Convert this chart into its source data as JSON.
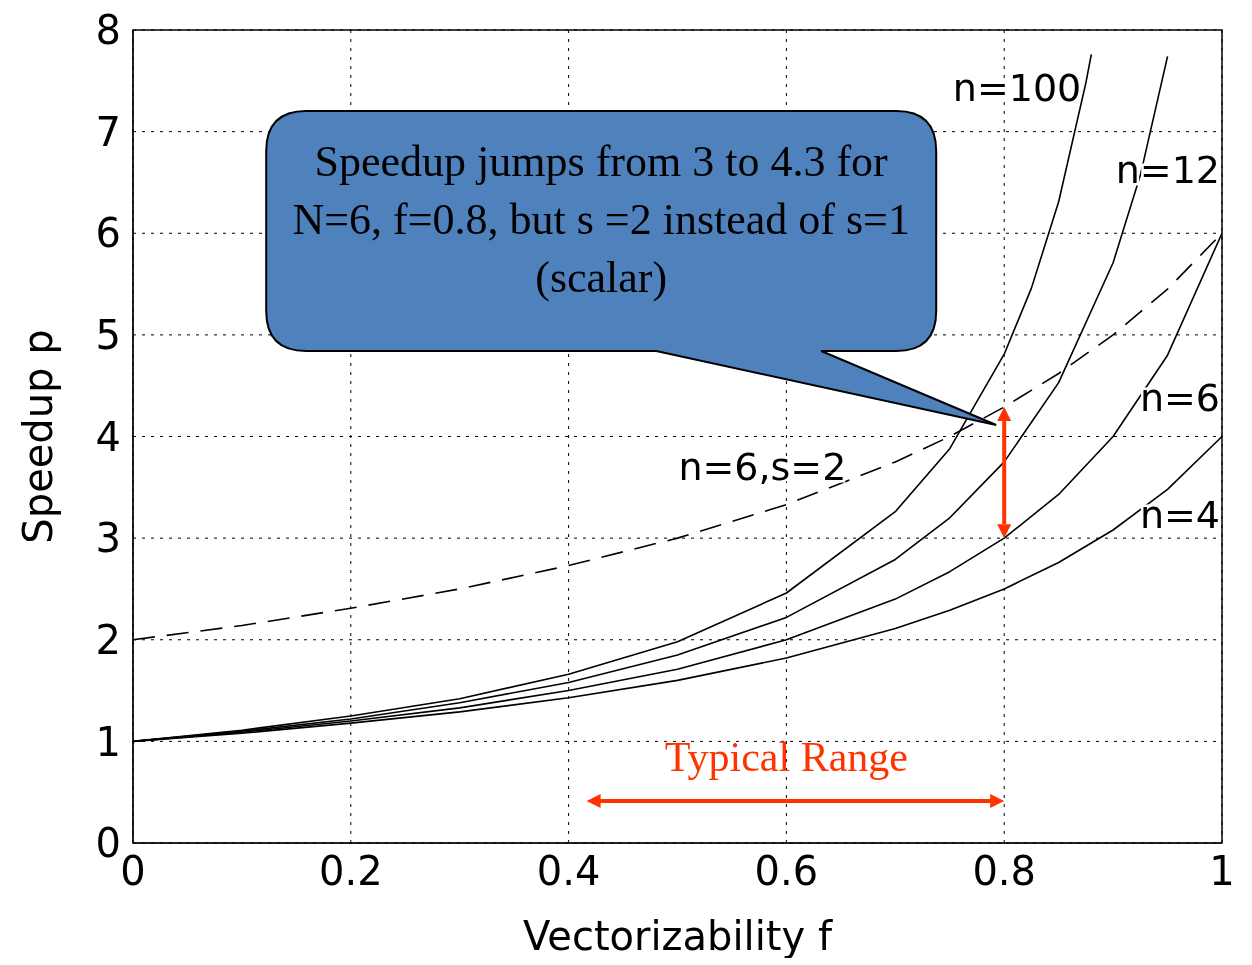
{
  "chart_data": {
    "type": "line",
    "xlabel": "Vectorizability  f",
    "ylabel": "Speedup  p",
    "xlim": [
      0,
      1
    ],
    "ylim": [
      0,
      8
    ],
    "xticks": [
      0,
      0.2,
      0.4,
      0.6,
      0.8,
      1
    ],
    "yticks": [
      0,
      1,
      2,
      3,
      4,
      5,
      6,
      7,
      8
    ],
    "grid": true,
    "legend": false,
    "marker": "none",
    "series": [
      {
        "name": "n=100",
        "color": "#000000",
        "line_style": "solid",
        "x": [
          0,
          0.1,
          0.2,
          0.3,
          0.4,
          0.5,
          0.6,
          0.7,
          0.75,
          0.8,
          0.825,
          0.85,
          0.875,
          0.88
        ],
        "values": [
          1,
          1.11,
          1.25,
          1.42,
          1.66,
          1.98,
          2.46,
          3.26,
          3.88,
          4.81,
          5.46,
          6.31,
          7.48,
          7.76
        ]
      },
      {
        "name": "n=12",
        "color": "#000000",
        "line_style": "solid",
        "x": [
          0,
          0.1,
          0.2,
          0.3,
          0.4,
          0.5,
          0.6,
          0.7,
          0.75,
          0.8,
          0.85,
          0.9,
          0.925,
          0.95
        ],
        "values": [
          1,
          1.1,
          1.22,
          1.38,
          1.58,
          1.85,
          2.22,
          2.79,
          3.2,
          3.75,
          4.53,
          5.71,
          6.57,
          7.74
        ]
      },
      {
        "name": "n=6",
        "color": "#000000",
        "line_style": "solid",
        "x": [
          0,
          0.1,
          0.2,
          0.3,
          0.4,
          0.5,
          0.6,
          0.7,
          0.75,
          0.8,
          0.85,
          0.9,
          0.95,
          1
        ],
        "values": [
          1,
          1.09,
          1.2,
          1.33,
          1.5,
          1.71,
          2,
          2.4,
          2.67,
          3,
          3.43,
          4,
          4.8,
          6
        ]
      },
      {
        "name": "n=4",
        "color": "#000000",
        "line_style": "solid",
        "x": [
          0,
          0.1,
          0.2,
          0.3,
          0.4,
          0.5,
          0.6,
          0.7,
          0.75,
          0.8,
          0.85,
          0.9,
          0.95,
          1
        ],
        "values": [
          1,
          1.08,
          1.18,
          1.29,
          1.43,
          1.6,
          1.82,
          2.11,
          2.29,
          2.5,
          2.76,
          3.08,
          3.48,
          4
        ]
      },
      {
        "name": "n=6,s=2",
        "color": "#000000",
        "line_style": "dashed",
        "x": [
          0,
          0.1,
          0.2,
          0.3,
          0.4,
          0.5,
          0.6,
          0.7,
          0.75,
          0.8,
          0.85,
          0.9,
          0.95,
          1
        ],
        "values": [
          2,
          2.14,
          2.31,
          2.5,
          2.73,
          3,
          3.33,
          3.75,
          4,
          4.29,
          4.62,
          5,
          5.45,
          6
        ]
      }
    ],
    "annotations": [
      "Speedup jumps from 3 to 4.3 for N=6, f=0.8, but s =2 instead of s=1 (scalar)",
      "Typical Range"
    ]
  }
}
